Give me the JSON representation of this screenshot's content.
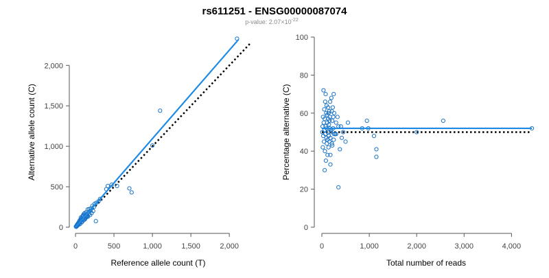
{
  "title": "rs611251 - ENSG00000087074",
  "subtitle_prefix": "p-value: 2.07×10",
  "subtitle_exponent": "-22",
  "chart_data": [
    {
      "type": "scatter",
      "xlabel": "Reference allele count (T)",
      "ylabel": "Alternative allele count (C)",
      "xlim": [
        0,
        2150
      ],
      "ylim": [
        0,
        2350
      ],
      "xticks": [
        0,
        500,
        1000,
        1500,
        2000
      ],
      "xtick_labels": [
        "0",
        "500",
        "1,000",
        "1,500",
        "2,000"
      ],
      "yticks": [
        0,
        500,
        1000,
        1500,
        2000
      ],
      "ytick_labels": [
        "0",
        "500",
        "1,000",
        "1,500",
        "2,000"
      ],
      "grid": false,
      "points": [
        [
          2100,
          2330
        ],
        [
          1100,
          1440
        ],
        [
          1000,
          1010
        ],
        [
          700,
          480
        ],
        [
          730,
          430
        ],
        [
          540,
          510
        ],
        [
          470,
          525
        ],
        [
          420,
          510
        ],
        [
          400,
          470
        ],
        [
          300,
          320
        ],
        [
          270,
          300
        ],
        [
          250,
          290
        ],
        [
          220,
          265
        ],
        [
          200,
          230
        ],
        [
          180,
          225
        ],
        [
          160,
          220
        ],
        [
          140,
          185
        ],
        [
          120,
          175
        ],
        [
          110,
          165
        ],
        [
          100,
          150
        ],
        [
          95,
          140
        ],
        [
          90,
          130
        ],
        [
          80,
          110
        ],
        [
          75,
          100
        ],
        [
          70,
          120
        ],
        [
          60,
          90
        ],
        [
          55,
          80
        ],
        [
          50,
          75
        ],
        [
          45,
          60
        ],
        [
          40,
          55
        ],
        [
          35,
          50
        ],
        [
          30,
          40
        ],
        [
          25,
          35
        ],
        [
          20,
          30
        ],
        [
          15,
          20
        ],
        [
          10,
          12
        ],
        [
          130,
          110
        ],
        [
          150,
          130
        ],
        [
          170,
          160
        ],
        [
          190,
          150
        ],
        [
          210,
          175
        ],
        [
          60,
          40
        ],
        [
          80,
          60
        ],
        [
          40,
          30
        ],
        [
          100,
          85
        ],
        [
          120,
          95
        ],
        [
          265,
          75
        ],
        [
          230,
          200
        ],
        [
          140,
          140
        ],
        [
          110,
          120
        ],
        [
          85,
          95
        ],
        [
          65,
          70
        ],
        [
          50,
          50
        ],
        [
          30,
          25
        ],
        [
          20,
          15
        ],
        [
          10,
          5
        ],
        [
          5,
          8
        ],
        [
          160,
          130
        ],
        [
          175,
          190
        ],
        [
          195,
          205
        ],
        [
          125,
          150
        ],
        [
          145,
          160
        ],
        [
          70,
          85
        ],
        [
          90,
          70
        ],
        [
          115,
          100
        ],
        [
          135,
          120
        ],
        [
          155,
          145
        ],
        [
          240,
          250
        ],
        [
          320,
          350
        ]
      ],
      "fit_line": {
        "x": [
          0,
          2120
        ],
        "y": [
          0,
          2320
        ]
      },
      "reference_line": {
        "x": [
          0,
          2270
        ],
        "y": [
          0,
          2270
        ]
      },
      "colors": {
        "points": "#1a73c6",
        "fit": "#1f8ae6",
        "reference": "#000000"
      }
    },
    {
      "type": "scatter",
      "xlabel": "Total number of reads",
      "ylabel": "Percentage alternative (C)",
      "xlim": [
        0,
        4400
      ],
      "ylim": [
        0,
        100
      ],
      "xticks": [
        0,
        1000,
        2000,
        3000,
        4000
      ],
      "xtick_labels": [
        "0",
        "1,000",
        "2,000",
        "3,000",
        "4,000"
      ],
      "yticks": [
        0,
        20,
        40,
        60,
        80,
        100
      ],
      "ytick_labels": [
        "0",
        "20",
        "40",
        "60",
        "80",
        "100"
      ],
      "grid": false,
      "points": [
        [
          4430,
          52
        ],
        [
          2560,
          56
        ],
        [
          2000,
          50
        ],
        [
          1150,
          41
        ],
        [
          1150,
          37
        ],
        [
          1100,
          48
        ],
        [
          980,
          52
        ],
        [
          950,
          56
        ],
        [
          850,
          52
        ],
        [
          550,
          55
        ],
        [
          500,
          45
        ],
        [
          450,
          50
        ],
        [
          400,
          53
        ],
        [
          380,
          41
        ],
        [
          350,
          21
        ],
        [
          330,
          58
        ],
        [
          300,
          55
        ],
        [
          280,
          49
        ],
        [
          260,
          60
        ],
        [
          250,
          46
        ],
        [
          240,
          52
        ],
        [
          230,
          63
        ],
        [
          220,
          56
        ],
        [
          210,
          44
        ],
        [
          200,
          68
        ],
        [
          190,
          50
        ],
        [
          180,
          38
        ],
        [
          175,
          66
        ],
        [
          170,
          58
        ],
        [
          165,
          52
        ],
        [
          160,
          45
        ],
        [
          155,
          61
        ],
        [
          150,
          54
        ],
        [
          145,
          48
        ],
        [
          140,
          42
        ],
        [
          135,
          57
        ],
        [
          130,
          63
        ],
        [
          125,
          50
        ],
        [
          120,
          46
        ],
        [
          115,
          55
        ],
        [
          110,
          59
        ],
        [
          105,
          44
        ],
        [
          100,
          52
        ],
        [
          95,
          47
        ],
        [
          90,
          60
        ],
        [
          85,
          35
        ],
        [
          80,
          53
        ],
        [
          75,
          49
        ],
        [
          70,
          66
        ],
        [
          65,
          40
        ],
        [
          60,
          57
        ],
        [
          55,
          51
        ],
        [
          50,
          62
        ],
        [
          45,
          45
        ],
        [
          40,
          55
        ],
        [
          35,
          72
        ],
        [
          30,
          48
        ],
        [
          25,
          58
        ],
        [
          20,
          42
        ],
        [
          15,
          53
        ],
        [
          10,
          50
        ],
        [
          60,
          30
        ],
        [
          80,
          70
        ],
        [
          100,
          64
        ],
        [
          120,
          38
        ],
        [
          140,
          60
        ],
        [
          160,
          56
        ],
        [
          180,
          47
        ],
        [
          200,
          51
        ],
        [
          220,
          43
        ],
        [
          240,
          58
        ],
        [
          260,
          49
        ],
        [
          180,
          33
        ],
        [
          210,
          61
        ],
        [
          300,
          49
        ],
        [
          350,
          53
        ],
        [
          420,
          47
        ],
        [
          250,
          70
        ]
      ],
      "fit_line": {
        "x": [
          0,
          4430
        ],
        "y": [
          52,
          52
        ]
      },
      "reference_line": {
        "x": [
          0,
          4430
        ],
        "y": [
          50,
          50
        ]
      },
      "colors": {
        "points": "#1a73c6",
        "fit": "#1f8ae6",
        "reference": "#000000"
      }
    }
  ]
}
